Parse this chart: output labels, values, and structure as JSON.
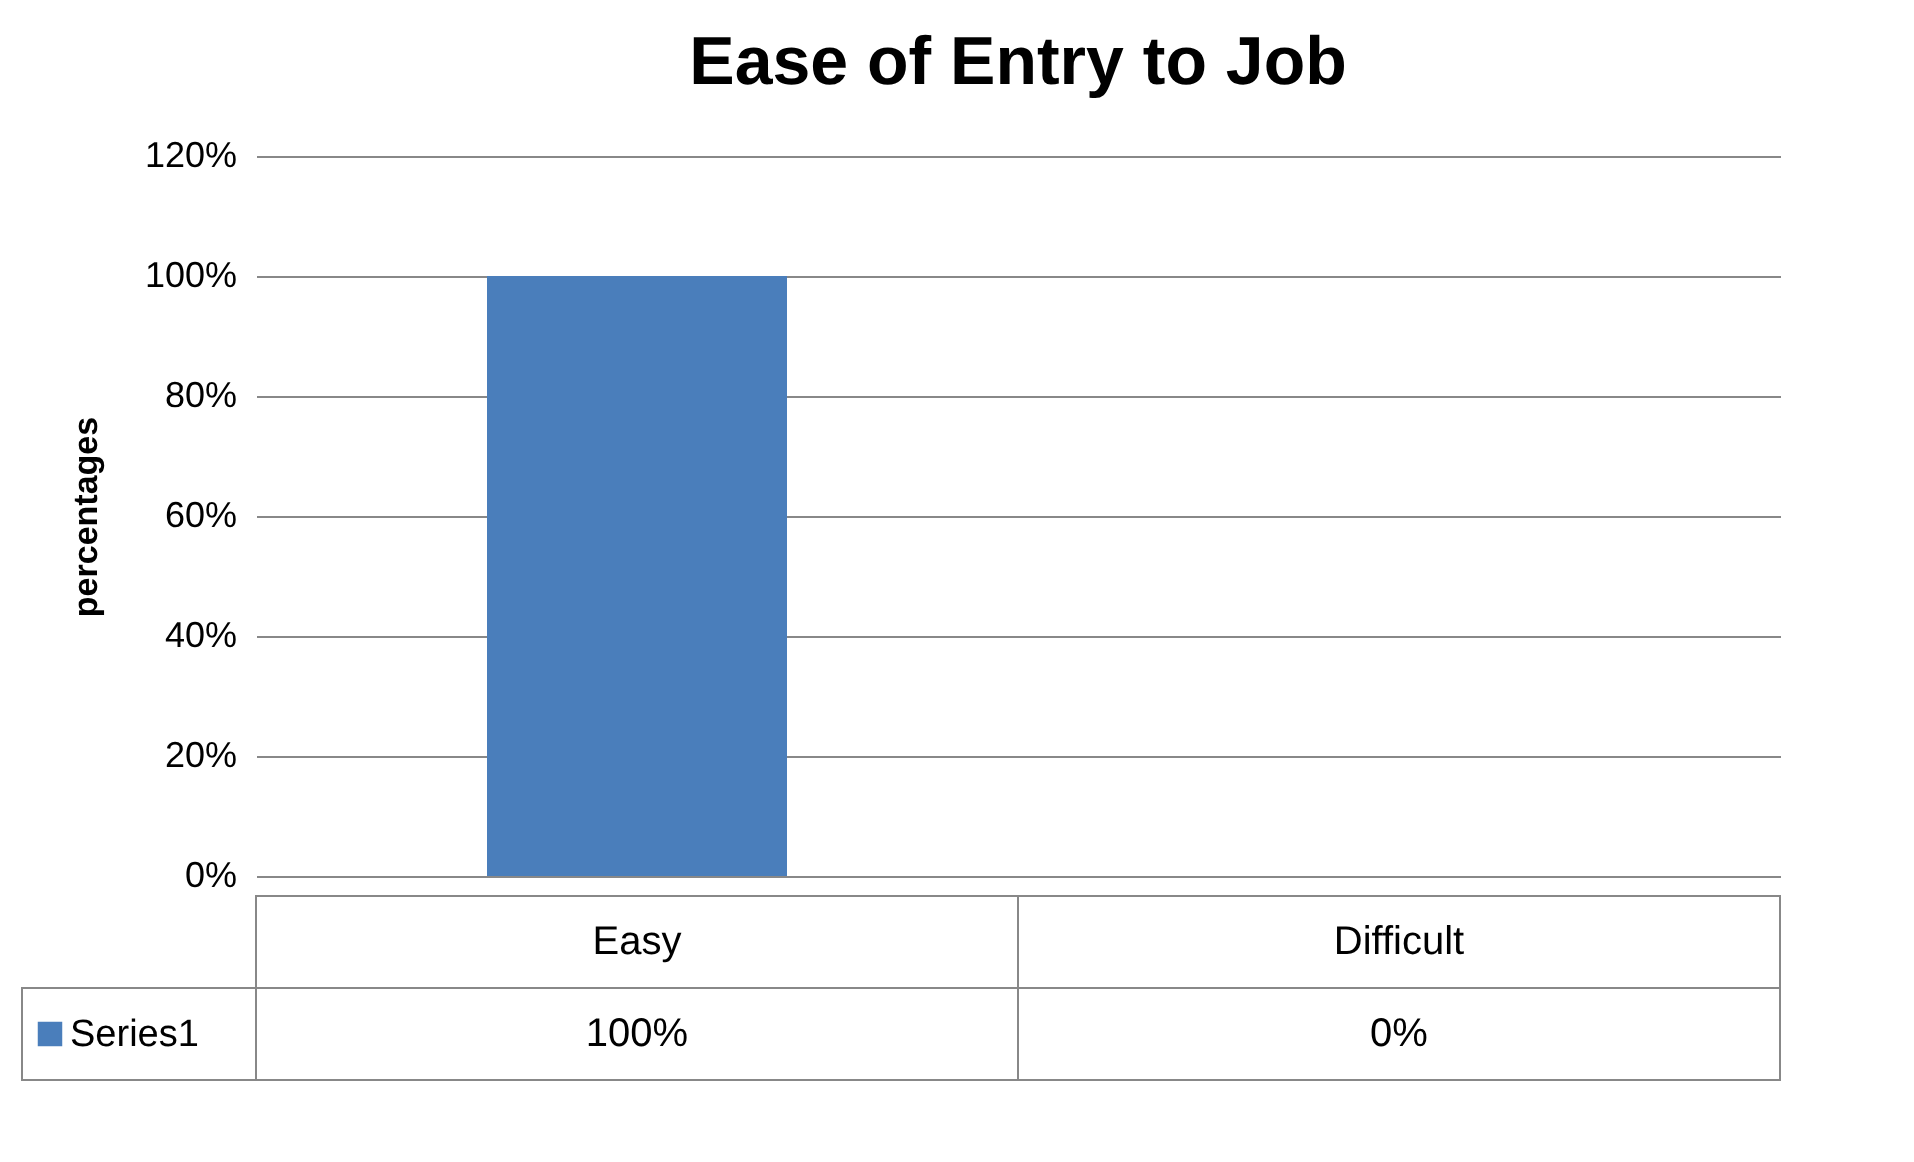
{
  "chart_data": {
    "type": "bar",
    "title": "Ease of Entry to Job",
    "ylabel": "percentages",
    "categories": [
      "Easy",
      "Difficult"
    ],
    "series": [
      {
        "name": "Series1",
        "color": "#4a7ebb",
        "values": [
          100,
          0
        ]
      }
    ],
    "value_labels": [
      "100%",
      "0%"
    ],
    "ylim": [
      0,
      120
    ],
    "yticks": [
      {
        "value": 0,
        "label": "0%"
      },
      {
        "value": 20,
        "label": "20%"
      },
      {
        "value": 40,
        "label": "40%"
      },
      {
        "value": 60,
        "label": "60%"
      },
      {
        "value": 80,
        "label": "80%"
      },
      {
        "value": 100,
        "label": "100%"
      },
      {
        "value": 120,
        "label": "120%"
      }
    ],
    "grid": "y"
  }
}
